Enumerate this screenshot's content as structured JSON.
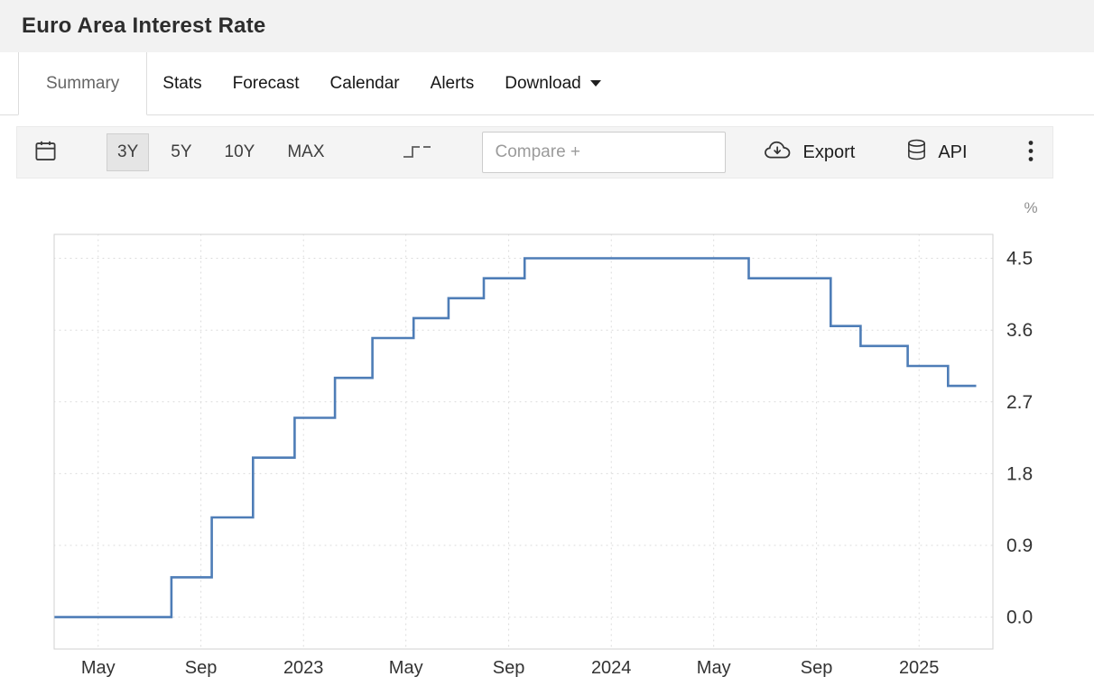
{
  "page": {
    "title": "Euro Area Interest Rate"
  },
  "tabs": {
    "items": [
      {
        "label": "Summary",
        "active": true
      },
      {
        "label": "Stats",
        "active": false
      },
      {
        "label": "Forecast",
        "active": false
      },
      {
        "label": "Calendar",
        "active": false
      },
      {
        "label": "Alerts",
        "active": false
      },
      {
        "label": "Download",
        "active": false,
        "caret_icon": "chevron-down"
      }
    ]
  },
  "toolbar": {
    "calendar_icon": "calendar",
    "range_buttons": [
      {
        "label": "3Y",
        "selected": true
      },
      {
        "label": "5Y",
        "selected": false
      },
      {
        "label": "10Y",
        "selected": false
      },
      {
        "label": "MAX",
        "selected": false
      }
    ],
    "chart_type_icon": "step-line",
    "compare_placeholder": "Compare +",
    "export_label": "Export",
    "export_icon": "cloud-download",
    "api_label": "API",
    "api_icon": "database-cylinder",
    "menu_icon": "kebab-vertical-dots"
  },
  "chart_data": {
    "type": "line",
    "step": true,
    "title": "Euro Area Interest Rate",
    "unit_label": "%",
    "line_color": "#4e7db7",
    "grid": true,
    "legend": false,
    "ylim": [
      -0.4,
      4.8
    ],
    "y_ticks": [
      4.5,
      3.6,
      2.7,
      1.8,
      0.9,
      0.0
    ],
    "x_domain": [
      2022.19,
      2025.24
    ],
    "x_ticks": [
      {
        "label": "May",
        "t": 2022.333
      },
      {
        "label": "Sep",
        "t": 2022.667
      },
      {
        "label": "2023",
        "t": 2023.0
      },
      {
        "label": "May",
        "t": 2023.333
      },
      {
        "label": "Sep",
        "t": 2023.667
      },
      {
        "label": "2024",
        "t": 2024.0
      },
      {
        "label": "May",
        "t": 2024.333
      },
      {
        "label": "Sep",
        "t": 2024.667
      },
      {
        "label": "2025",
        "t": 2025.0
      }
    ],
    "points": [
      {
        "date": "2022-03-10",
        "value": 0.0
      },
      {
        "date": "2022-07-27",
        "value": 0.5
      },
      {
        "date": "2022-09-14",
        "value": 1.25
      },
      {
        "date": "2022-11-02",
        "value": 2.0
      },
      {
        "date": "2022-12-21",
        "value": 2.5
      },
      {
        "date": "2023-02-08",
        "value": 3.0
      },
      {
        "date": "2023-03-22",
        "value": 3.5
      },
      {
        "date": "2023-05-10",
        "value": 3.75
      },
      {
        "date": "2023-06-21",
        "value": 4.0
      },
      {
        "date": "2023-08-02",
        "value": 4.25
      },
      {
        "date": "2023-09-20",
        "value": 4.5
      },
      {
        "date": "2024-06-12",
        "value": 4.25
      },
      {
        "date": "2024-09-18",
        "value": 3.65
      },
      {
        "date": "2024-10-23",
        "value": 3.4
      },
      {
        "date": "2024-12-18",
        "value": 3.15
      },
      {
        "date": "2025-02-05",
        "value": 2.9
      },
      {
        "date": "2025-03-08",
        "value": 2.9
      }
    ]
  }
}
